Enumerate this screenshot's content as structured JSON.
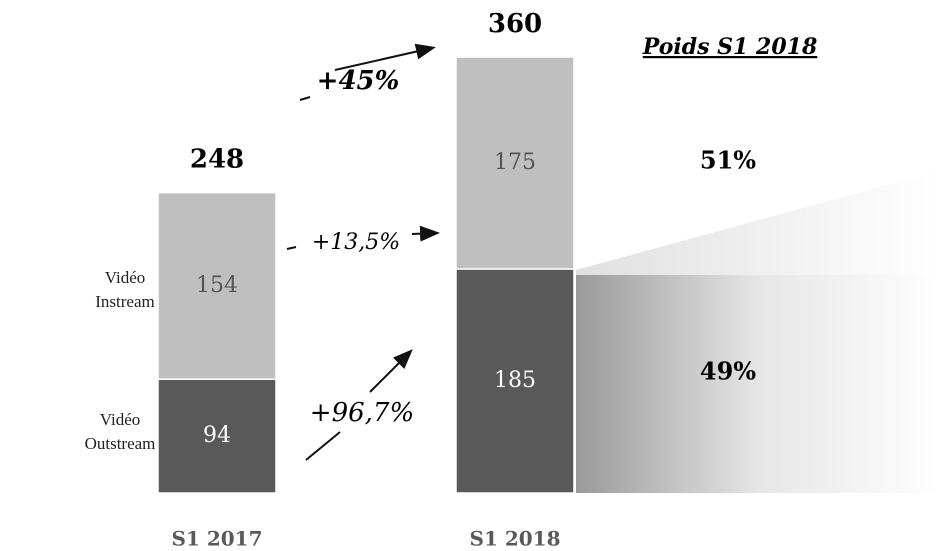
{
  "chart_data": {
    "type": "stacked_bar",
    "categories": [
      "S1 2017",
      "S1 2018"
    ],
    "series": [
      {
        "name": "Vidéo Outstream",
        "color": "#595959",
        "values": [
          94,
          185
        ]
      },
      {
        "name": "Vidéo Instream",
        "color": "#bfbfbf",
        "values": [
          154,
          175
        ]
      }
    ],
    "totals": [
      248,
      360
    ],
    "annotations": [
      "+45%",
      "+13,5%",
      "+96,7%"
    ],
    "shares": {
      "title": "Poids S1 2018",
      "values": [
        49,
        51
      ],
      "value_labels": [
        "49%",
        "51%"
      ]
    }
  }
}
